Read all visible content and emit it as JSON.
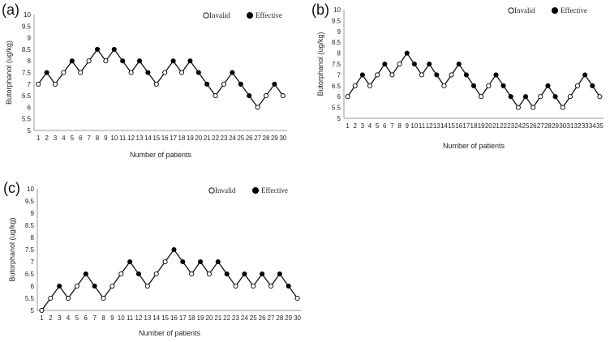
{
  "chart_data": [
    {
      "panel_label": "(a)",
      "type": "line",
      "ylabel": "Butorphanol (ug/kg)",
      "xlabel": "Number of patients",
      "ylim": [
        5,
        10
      ],
      "yticks": [
        "5",
        "5.5",
        "6",
        "6.5",
        "7",
        "7.5",
        "8",
        "8.5",
        "9",
        "9.5",
        "10"
      ],
      "legend": {
        "invalid_label": "Invalid",
        "effective_label": "Effective",
        "placement": "top-right"
      },
      "x": [
        1,
        2,
        3,
        4,
        5,
        6,
        7,
        8,
        9,
        10,
        11,
        12,
        13,
        14,
        15,
        16,
        17,
        18,
        19,
        20,
        21,
        22,
        23,
        24,
        25,
        26,
        27,
        28,
        29,
        30
      ],
      "values": [
        7,
        7.5,
        7,
        7.5,
        8,
        7.5,
        8,
        8.5,
        8,
        8.5,
        8,
        7.5,
        8,
        7.5,
        7,
        7.5,
        8,
        7.5,
        8,
        7.5,
        7,
        6.5,
        7,
        7.5,
        7,
        6.5,
        6,
        6.5,
        7,
        6.5
      ],
      "outcome": [
        "I",
        "E",
        "I",
        "I",
        "E",
        "I",
        "I",
        "E",
        "I",
        "E",
        "E",
        "I",
        "E",
        "E",
        "I",
        "I",
        "E",
        "I",
        "E",
        "E",
        "E",
        "I",
        "I",
        "E",
        "E",
        "E",
        "I",
        "I",
        "E",
        "I"
      ]
    },
    {
      "panel_label": "(b)",
      "type": "line",
      "ylabel": "Butorphanol (ug/kg)",
      "xlabel": "Number of patients",
      "ylim": [
        5,
        10
      ],
      "yticks": [
        "5",
        "5.5",
        "6",
        "6.5",
        "7",
        "7.5",
        "8",
        "8.5",
        "9",
        "9.5",
        "10"
      ],
      "legend": {
        "invalid_label": "Invalid",
        "effective_label": "Effective",
        "placement": "top-right"
      },
      "x": [
        1,
        2,
        3,
        4,
        5,
        6,
        7,
        8,
        9,
        10,
        11,
        12,
        13,
        14,
        15,
        16,
        17,
        18,
        19,
        20,
        21,
        22,
        23,
        24,
        25,
        26,
        27,
        28,
        29,
        30,
        31,
        32,
        33,
        34,
        35
      ],
      "values": [
        6,
        6.5,
        7,
        6.5,
        7,
        7.5,
        7,
        7.5,
        8,
        7.5,
        7,
        7.5,
        7,
        6.5,
        7,
        7.5,
        7,
        6.5,
        6,
        6.5,
        7,
        6.5,
        6,
        5.5,
        6,
        5.5,
        6,
        6.5,
        6,
        5.5,
        6,
        6.5,
        7,
        6.5,
        6
      ],
      "outcome": [
        "I",
        "I",
        "E",
        "I",
        "I",
        "E",
        "I",
        "I",
        "E",
        "E",
        "I",
        "E",
        "E",
        "I",
        "I",
        "E",
        "E",
        "E",
        "I",
        "I",
        "E",
        "E",
        "E",
        "I",
        "E",
        "I",
        "I",
        "E",
        "E",
        "I",
        "I",
        "I",
        "E",
        "E",
        "I"
      ]
    },
    {
      "panel_label": "(c)",
      "type": "line",
      "ylabel": "Butorphanol (ug/kg)",
      "xlabel": "Number of patients",
      "ylim": [
        5,
        10
      ],
      "yticks": [
        "5",
        "5.5",
        "6",
        "6.5",
        "7",
        "7.5",
        "8",
        "8.5",
        "9",
        "9.5",
        "10"
      ],
      "legend": {
        "invalid_label": "Invalid",
        "effective_label": "Effective",
        "placement": "top-right"
      },
      "x": [
        1,
        2,
        3,
        4,
        5,
        6,
        7,
        8,
        9,
        10,
        11,
        12,
        13,
        14,
        15,
        16,
        17,
        18,
        19,
        20,
        21,
        22,
        23,
        24,
        25,
        26,
        27,
        28,
        29,
        30
      ],
      "values": [
        5,
        5.5,
        6,
        5.5,
        6,
        6.5,
        6,
        5.5,
        6,
        6.5,
        7,
        6.5,
        6,
        6.5,
        7,
        7.5,
        7,
        6.5,
        7,
        6.5,
        7,
        6.5,
        6,
        6.5,
        6,
        6.5,
        6,
        6.5,
        6,
        5.5
      ],
      "outcome": [
        "I",
        "I",
        "E",
        "I",
        "I",
        "E",
        "E",
        "I",
        "I",
        "I",
        "E",
        "E",
        "I",
        "I",
        "I",
        "E",
        "E",
        "I",
        "E",
        "I",
        "E",
        "E",
        "I",
        "E",
        "I",
        "E",
        "I",
        "E",
        "E",
        "I"
      ]
    }
  ]
}
